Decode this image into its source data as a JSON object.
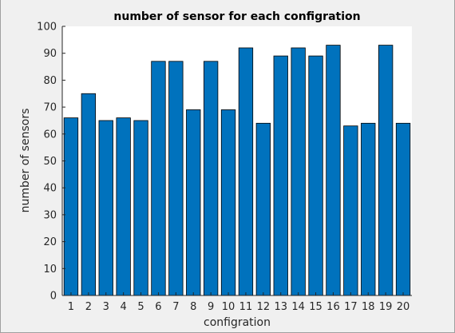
{
  "chart_data": {
    "type": "bar",
    "title": "number of sensor for each configration",
    "xlabel": "configration",
    "ylabel": "number of sensors",
    "categories": [
      "1",
      "2",
      "3",
      "4",
      "5",
      "6",
      "7",
      "8",
      "9",
      "10",
      "11",
      "12",
      "13",
      "14",
      "15",
      "16",
      "17",
      "18",
      "19",
      "20"
    ],
    "values": [
      66,
      75,
      65,
      66,
      65,
      87,
      87,
      69,
      87,
      69,
      92,
      64,
      89,
      92,
      89,
      93,
      63,
      64,
      93,
      64
    ],
    "ylim": [
      0,
      100
    ],
    "yticks": [
      0,
      10,
      20,
      30,
      40,
      50,
      60,
      70,
      80,
      90,
      100
    ],
    "grid": false,
    "colors": {
      "bar_fill": "#0072BD",
      "bar_edge": "#000000",
      "axes_background": "#ffffff",
      "figure_background": "#f0f0f0"
    }
  }
}
